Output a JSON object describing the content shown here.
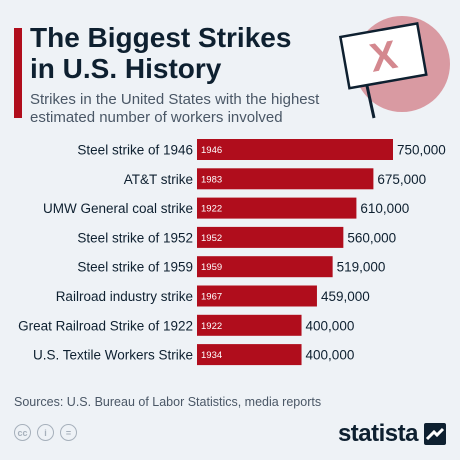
{
  "header": {
    "title_line1": "The Biggest Strikes",
    "title_line2": "in U.S. History",
    "subtitle_line1": "Strikes in the United States with the highest",
    "subtitle_line2": "estimated number of workers involved",
    "sign_mark": "X"
  },
  "colors": {
    "bar": "#b00d1c",
    "accent": "#b00d1c",
    "sign_circle": "#d99aa2",
    "text": "#0e2030"
  },
  "chart_data": {
    "type": "bar",
    "orientation": "horizontal",
    "categories": [
      "Steel strike of 1946",
      "AT&T strike",
      "UMW General coal strike",
      "Steel strike of 1952",
      "Steel strike of 1959",
      "Railroad industry strike",
      "Great Railroad Strike of 1922",
      "U.S. Textile Workers Strike"
    ],
    "years": [
      "1946",
      "1983",
      "1922",
      "1952",
      "1959",
      "1967",
      "1922",
      "1934"
    ],
    "values": [
      750000,
      675000,
      610000,
      560000,
      519000,
      459000,
      400000,
      400000
    ],
    "value_labels": [
      "750,000",
      "675,000",
      "610,000",
      "560,000",
      "519,000",
      "459,000",
      "400,000",
      "400,000"
    ],
    "xlim": [
      0,
      750000
    ],
    "grid": false
  },
  "footer": {
    "source": "Sources: U.S. Bureau of Labor Statistics, media reports",
    "license_icons": [
      "creative-commons-icon",
      "attribution-icon",
      "no-derivatives-icon"
    ],
    "brand": "statista"
  }
}
